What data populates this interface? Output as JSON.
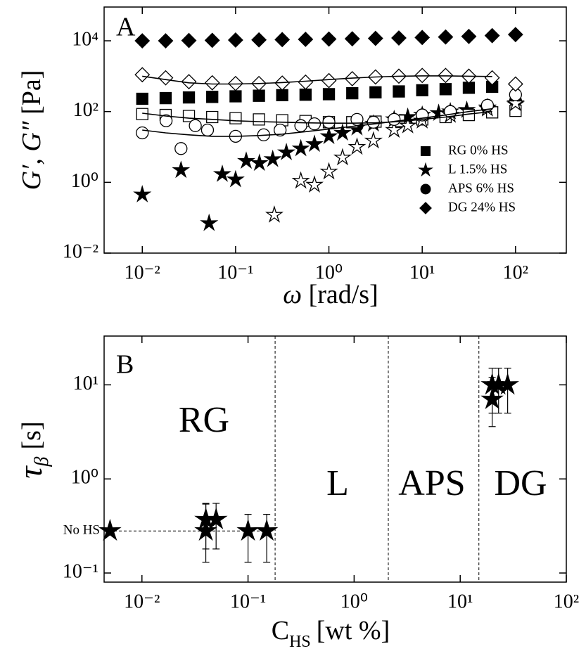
{
  "chart_data": [
    {
      "type": "scatter",
      "panel_label": "A",
      "log_x": true,
      "log_y": true,
      "xlabel": {
        "symbol": "ω",
        "unit": "[rad/s]"
      },
      "ylabel": {
        "symbol": "G′, G″",
        "unit": "[Pa]"
      },
      "xlim": [
        0.0039,
        350
      ],
      "ylim": [
        0.01,
        90000
      ],
      "xticks": [
        {
          "value": 0.01,
          "label": "10⁻²"
        },
        {
          "value": 0.1,
          "label": "10⁻¹"
        },
        {
          "value": 1,
          "label": "10⁰"
        },
        {
          "value": 10,
          "label": "10¹"
        },
        {
          "value": 100,
          "label": "10²"
        }
      ],
      "yticks": [
        {
          "value": 0.01,
          "label": "10⁻²"
        },
        {
          "value": 1,
          "label": "10⁰"
        },
        {
          "value": 100,
          "label": "10²"
        },
        {
          "value": 10000,
          "label": "10⁴"
        }
      ],
      "legend_position": "right",
      "color": "#000000",
      "series": [
        {
          "name": "RG 0% HS",
          "marker": "square",
          "filled": true,
          "x": [
            0.01,
            0.0178,
            0.0316,
            0.0562,
            0.1,
            0.178,
            0.316,
            0.562,
            1,
            1.78,
            3.16,
            5.62,
            10,
            17.8,
            31.6,
            56.2
          ],
          "values": [
            230,
            240,
            250,
            260,
            270,
            280,
            290,
            300,
            310,
            330,
            350,
            370,
            400,
            430,
            470,
            500
          ]
        },
        {
          "name": "L 1.5% HS",
          "marker": "star",
          "filled": true,
          "x": [
            0.01,
            0.026,
            0.052,
            0.072,
            0.1,
            0.13,
            0.18,
            0.25,
            0.35,
            0.5,
            0.7,
            1,
            1.4,
            2,
            3,
            5,
            7,
            10,
            15,
            20,
            30,
            50,
            100
          ],
          "values": [
            0.45,
            2.2,
            0.07,
            1.7,
            1.2,
            4,
            3.5,
            4.5,
            7,
            9,
            12,
            20,
            25,
            35,
            45,
            60,
            70,
            80,
            90,
            100,
            110,
            130,
            160
          ]
        },
        {
          "name": "APS 6% HS",
          "marker": "circle",
          "filled": true,
          "x": [
            2,
            5,
            10,
            20,
            50,
            100
          ],
          "values": [
            40,
            60,
            80,
            100,
            130,
            200
          ]
        },
        {
          "name": "DG 24% HS",
          "marker": "diamond",
          "filled": true,
          "x": [
            0.01,
            0.0178,
            0.0316,
            0.0562,
            0.1,
            0.178,
            0.316,
            0.562,
            1,
            1.78,
            3.16,
            5.62,
            10,
            17.8,
            31.6,
            56.2,
            100
          ],
          "values": [
            10000,
            10000,
            10200,
            10300,
            10500,
            10600,
            10800,
            11000,
            11200,
            11400,
            11700,
            12000,
            12400,
            12800,
            13300,
            14000,
            15000
          ]
        },
        {
          "marker": "square",
          "filled": false,
          "x": [
            0.01,
            0.0178,
            0.0316,
            0.0562,
            0.1,
            0.178,
            0.316,
            0.562,
            1,
            1.78,
            3.16,
            5.62,
            10,
            17.8,
            31.6,
            56.2,
            100
          ],
          "values": [
            85,
            80,
            75,
            70,
            65,
            60,
            57,
            54,
            50,
            50,
            52,
            55,
            60,
            70,
            80,
            95,
            105
          ]
        },
        {
          "marker": "star",
          "filled": false,
          "x": [
            0.26,
            0.5,
            0.7,
            1,
            1.4,
            2,
            3,
            5,
            7,
            10,
            20,
            50,
            100
          ],
          "values": [
            0.12,
            1.1,
            0.85,
            2,
            5,
            10,
            15,
            30,
            40,
            55,
            80,
            120,
            170
          ]
        },
        {
          "marker": "circle",
          "filled": false,
          "x": [
            0.01,
            0.018,
            0.026,
            0.037,
            0.05,
            0.1,
            0.2,
            0.3,
            0.5,
            0.7,
            1,
            2,
            3,
            5,
            10,
            20,
            50,
            100
          ],
          "values": [
            25,
            55,
            9,
            40,
            30,
            20,
            22,
            30,
            40,
            45,
            50,
            60,
            50,
            60,
            80,
            100,
            150,
            300
          ]
        },
        {
          "marker": "diamond",
          "filled": false,
          "x": [
            0.01,
            0.0178,
            0.0316,
            0.0562,
            0.1,
            0.178,
            0.316,
            0.562,
            1,
            1.78,
            3.16,
            5.62,
            10,
            17.8,
            31.6,
            56.2,
            100
          ],
          "values": [
            1100,
            900,
            700,
            650,
            620,
            620,
            640,
            680,
            750,
            850,
            950,
            1000,
            1050,
            1050,
            1000,
            900,
            600
          ]
        },
        {
          "style": "line",
          "x": [
            0.01,
            0.0178,
            0.0316,
            0.0562,
            0.1,
            0.178,
            0.316,
            0.562,
            1,
            1.78,
            3.16,
            5.62,
            10,
            17.8,
            31.6,
            56.2
          ],
          "values": [
            90,
            75,
            65,
            60,
            55,
            52,
            50,
            48,
            47,
            47,
            48,
            52,
            60,
            70,
            85,
            100
          ]
        },
        {
          "style": "line",
          "x": [
            0.01,
            0.0178,
            0.0316,
            0.0562,
            0.1,
            0.178,
            0.316,
            0.562,
            1,
            1.78,
            3.16,
            5.62,
            10,
            17.8,
            31.6,
            56.2
          ],
          "values": [
            30,
            25,
            22,
            20,
            20,
            21,
            23,
            27,
            32,
            38,
            45,
            55,
            65,
            80,
            100,
            120
          ]
        },
        {
          "style": "line",
          "x": [
            0.01,
            0.0178,
            0.0316,
            0.0562,
            0.1,
            0.178,
            0.316,
            0.562,
            1,
            1.78,
            3.16,
            5.62,
            10,
            17.8,
            31.6,
            56.2
          ],
          "values": [
            1000,
            800,
            650,
            600,
            600,
            620,
            660,
            720,
            800,
            880,
            950,
            1000,
            1020,
            1020,
            1000,
            980
          ]
        }
      ]
    },
    {
      "type": "scatter",
      "panel_label": "B",
      "log_x": true,
      "log_y": true,
      "xlabel": {
        "symbol": "C",
        "subscript": "HS",
        "unit": "[wt %]"
      },
      "ylabel": {
        "symbol": "τ",
        "subscript": "β",
        "unit": "[s]"
      },
      "xlim": [
        0.0044,
        100
      ],
      "ylim": [
        0.08,
        33
      ],
      "xticks": [
        {
          "value": 0.01,
          "label": "10⁻²"
        },
        {
          "value": 0.1,
          "label": "10⁻¹"
        },
        {
          "value": 1,
          "label": "10⁰"
        },
        {
          "value": 10,
          "label": "10¹"
        },
        {
          "value": 100,
          "label": "10²"
        }
      ],
      "yticks": [
        {
          "value": 0.1,
          "label": "10⁻¹"
        },
        {
          "value": 1,
          "label": "10⁰"
        },
        {
          "value": 10,
          "label": "10¹"
        }
      ],
      "color": "#000000",
      "regions": [
        "RG",
        "L",
        "APS",
        "DG"
      ],
      "boundaries": [
        0.18,
        2.1,
        15
      ],
      "reference": {
        "label": "No HS",
        "value": 0.28,
        "x_end": 0.15
      },
      "series": [
        {
          "marker": "star",
          "filled": true,
          "x": [
            0.005,
            0.04,
            0.04,
            0.05,
            0.1,
            0.15,
            20,
            20,
            23,
            28
          ],
          "values": [
            0.28,
            0.28,
            0.37,
            0.37,
            0.28,
            0.28,
            7,
            10,
            10,
            10
          ],
          "y_low": [
            null,
            0.13,
            0.18,
            0.18,
            0.13,
            0.13,
            3.6,
            5,
            5,
            5
          ],
          "y_high": [
            null,
            0.54,
            0.55,
            0.55,
            0.42,
            0.42,
            12,
            15,
            15,
            15
          ]
        }
      ]
    }
  ]
}
